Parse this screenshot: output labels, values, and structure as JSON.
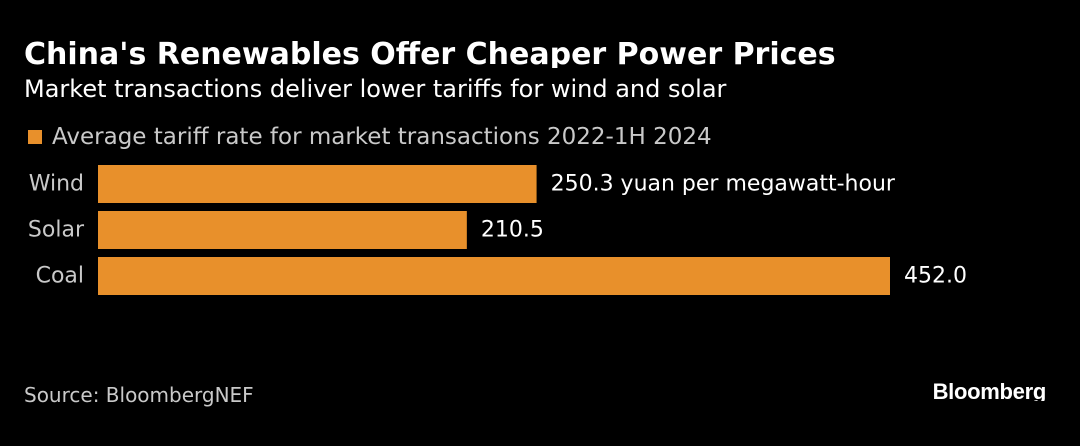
{
  "header": {
    "title": "China's Renewables Offer Cheaper Power Prices",
    "subtitle": "Market transactions deliver lower tariffs for wind and solar"
  },
  "legend": {
    "label": "Average tariff rate for market transactions 2022-1H 2024"
  },
  "footer": {
    "source": "Source: BloombergNEF",
    "brand": "Bloomberg"
  },
  "colors": {
    "background": "#000000",
    "bar": "#e8902b",
    "text": "#ffffff",
    "muted_text": "#c9c9c9"
  },
  "chart_data": {
    "type": "bar",
    "orientation": "horizontal",
    "title": "China's Renewables Offer Cheaper Power Prices",
    "subtitle": "Market transactions deliver lower tariffs for wind and solar",
    "categories": [
      "Wind",
      "Solar",
      "Coal"
    ],
    "series": [
      {
        "name": "Average tariff rate for market transactions 2022-1H 2024",
        "values": [
          250.3,
          210.5,
          452.0
        ]
      }
    ],
    "data_labels": [
      "250.3 yuan per megawatt-hour",
      "210.5",
      "452.0"
    ],
    "xlim": [
      0,
      452.0
    ],
    "xlabel": "",
    "ylabel": "",
    "grid": false,
    "legend_position": "top-left"
  }
}
